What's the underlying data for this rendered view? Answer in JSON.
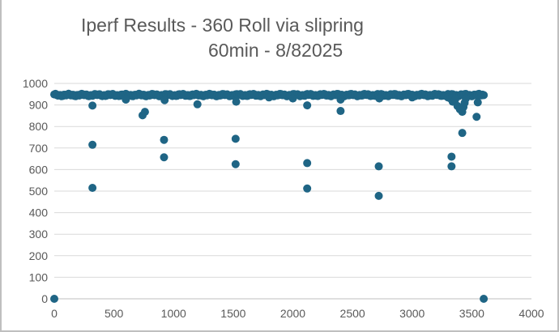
{
  "chart_data": {
    "type": "scatter",
    "title_line1": "Iperf Results - 360 Roll via slipring",
    "title_line2": "60min - 8/82025",
    "xlim": [
      0,
      4000
    ],
    "ylim": [
      0,
      1000
    ],
    "x_ticks": [
      0,
      500,
      1000,
      1500,
      2000,
      2500,
      3000,
      3500,
      4000
    ],
    "y_ticks": [
      0,
      100,
      200,
      300,
      400,
      500,
      600,
      700,
      800,
      900,
      1000
    ],
    "grid": "horizontal",
    "marker_color": "#1f6585",
    "series": [
      {
        "band": {
          "x_start": 0,
          "x_end": 3600,
          "x_step": 10,
          "y_base": 946,
          "y_jitter": 6
        },
        "points": [
          [
            0,
            0
          ],
          [
            3600,
            0
          ],
          [
            320,
            515
          ],
          [
            320,
            715
          ],
          [
            320,
            897
          ],
          [
            600,
            925
          ],
          [
            740,
            852
          ],
          [
            760,
            868
          ],
          [
            920,
            738
          ],
          [
            920,
            657
          ],
          [
            925,
            922
          ],
          [
            1200,
            903
          ],
          [
            1520,
            743
          ],
          [
            1520,
            625
          ],
          [
            1525,
            915
          ],
          [
            1800,
            935
          ],
          [
            2000,
            930
          ],
          [
            2120,
            630
          ],
          [
            2120,
            512
          ],
          [
            2120,
            898
          ],
          [
            2400,
            872
          ],
          [
            2400,
            925
          ],
          [
            2720,
            615
          ],
          [
            2720,
            478
          ],
          [
            2725,
            930
          ],
          [
            3000,
            935
          ],
          [
            3300,
            935
          ],
          [
            3320,
            930
          ],
          [
            3330,
            660
          ],
          [
            3330,
            615
          ],
          [
            3340,
            915
          ],
          [
            3360,
            925
          ],
          [
            3380,
            895
          ],
          [
            3400,
            880
          ],
          [
            3420,
            868
          ],
          [
            3420,
            770
          ],
          [
            3430,
            890
          ],
          [
            3440,
            910
          ],
          [
            3450,
            930
          ],
          [
            3540,
            845
          ],
          [
            3550,
            912
          ]
        ]
      }
    ]
  }
}
